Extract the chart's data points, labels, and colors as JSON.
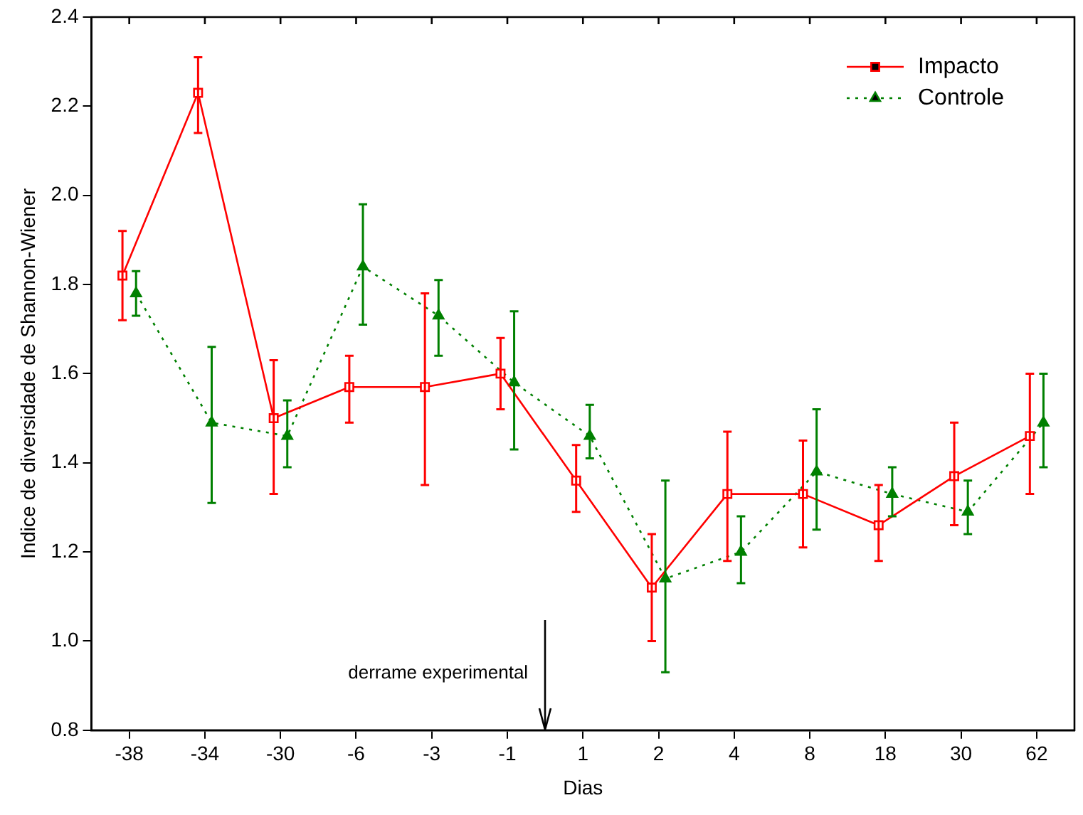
{
  "chart_data": {
    "type": "line",
    "xlabel": "Dias",
    "ylabel": "Indice de diversidade de Shannon-Wiener",
    "categories": [
      "-38",
      "-34",
      "-30",
      "-6",
      "-3",
      "-1",
      "1",
      "2",
      "4",
      "8",
      "18",
      "30",
      "62"
    ],
    "ylim": [
      0.8,
      2.4
    ],
    "yticks": [
      0.8,
      {
        "value": 1,
        "label": "1.0"
      },
      1.2,
      1.4,
      1.6,
      1.8,
      {
        "value": 2,
        "label": "2.0"
      },
      2.2,
      2.4
    ],
    "grid": false,
    "legend": "top right",
    "annotations": [
      "derrame experimental"
    ],
    "series": [
      {
        "name": "Impacto",
        "color": "#ff0000",
        "marker": "square",
        "line_style": "solid",
        "values": [
          1.82,
          2.23,
          1.5,
          1.57,
          1.57,
          1.6,
          1.36,
          1.12,
          1.33,
          1.33,
          1.26,
          1.37,
          1.46
        ],
        "errors": [
          [
            1.72,
            1.92
          ],
          [
            2.14,
            2.31
          ],
          [
            1.33,
            1.63
          ],
          [
            1.49,
            1.64
          ],
          [
            1.35,
            1.78
          ],
          [
            1.52,
            1.68
          ],
          [
            1.29,
            1.44
          ],
          [
            1.0,
            1.24
          ],
          [
            1.18,
            1.47
          ],
          [
            1.21,
            1.45
          ],
          [
            1.18,
            1.35
          ],
          [
            1.26,
            1.49
          ],
          [
            1.33,
            1.6
          ]
        ]
      },
      {
        "name": "Controle",
        "color": "#008000",
        "marker": "triangle",
        "line_style": "dotted",
        "values": [
          1.78,
          1.49,
          1.46,
          1.84,
          1.73,
          1.58,
          1.46,
          1.14,
          1.2,
          1.38,
          1.33,
          1.29,
          1.49
        ],
        "errors": [
          [
            1.73,
            1.83
          ],
          [
            1.31,
            1.66
          ],
          [
            1.39,
            1.54
          ],
          [
            1.71,
            1.98
          ],
          [
            1.64,
            1.81
          ],
          [
            1.43,
            1.74
          ],
          [
            1.41,
            1.53
          ],
          [
            0.93,
            1.36
          ],
          [
            1.13,
            1.28
          ],
          [
            1.25,
            1.52
          ],
          [
            1.28,
            1.39
          ],
          [
            1.24,
            1.36
          ],
          [
            1.39,
            1.6
          ]
        ]
      }
    ]
  }
}
